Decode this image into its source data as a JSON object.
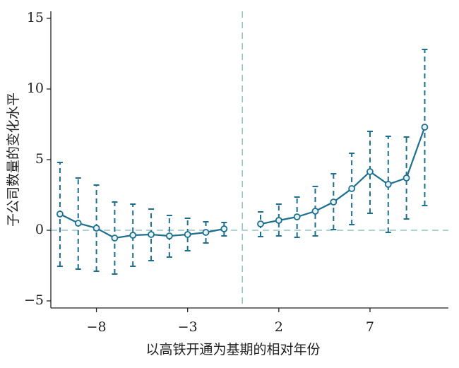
{
  "chart_data": {
    "type": "errorbar-line",
    "x_label": "以高铁开通为基期的相对年份",
    "y_label": "子公司数量的变化水平",
    "x": [
      -10,
      -9,
      -8,
      -7,
      -6,
      -5,
      -4,
      -3,
      -2,
      -1,
      0,
      1,
      2,
      3,
      4,
      5,
      6,
      7,
      8,
      9,
      10
    ],
    "series": [
      {
        "color": "#1c6f8f",
        "values": [
          1.15,
          0.5,
          0.15,
          -0.55,
          -0.35,
          -0.3,
          -0.4,
          -0.3,
          -0.15,
          0.1,
          null,
          0.45,
          0.7,
          0.95,
          1.35,
          2.0,
          2.95,
          4.15,
          3.25,
          3.7,
          7.3
        ],
        "ci_low": [
          -2.55,
          -2.75,
          -2.9,
          -3.1,
          -2.55,
          -2.15,
          -1.9,
          -1.45,
          -0.9,
          -0.4,
          null,
          -0.45,
          -0.4,
          -0.5,
          -0.4,
          0.05,
          0.4,
          1.2,
          -0.15,
          0.8,
          1.75
        ],
        "ci_high": [
          4.8,
          3.7,
          3.2,
          2.0,
          1.85,
          1.5,
          1.05,
          0.85,
          0.6,
          0.55,
          null,
          1.3,
          1.85,
          2.35,
          3.1,
          4.0,
          5.45,
          7.0,
          6.65,
          6.6,
          12.8
        ]
      }
    ],
    "reference_lines": {
      "x": 0,
      "y": 0,
      "color": "#7fb8b8"
    },
    "xlim": [
      -10.5,
      11.3
    ],
    "ylim": [
      -5.5,
      15.5
    ],
    "xticks": [
      {
        "value": -8,
        "label": "−8"
      },
      {
        "value": -3,
        "label": "−3"
      },
      2,
      7
    ],
    "yticks": [
      {
        "value": -5,
        "label": "−5"
      },
      0,
      5,
      10,
      15
    ]
  }
}
